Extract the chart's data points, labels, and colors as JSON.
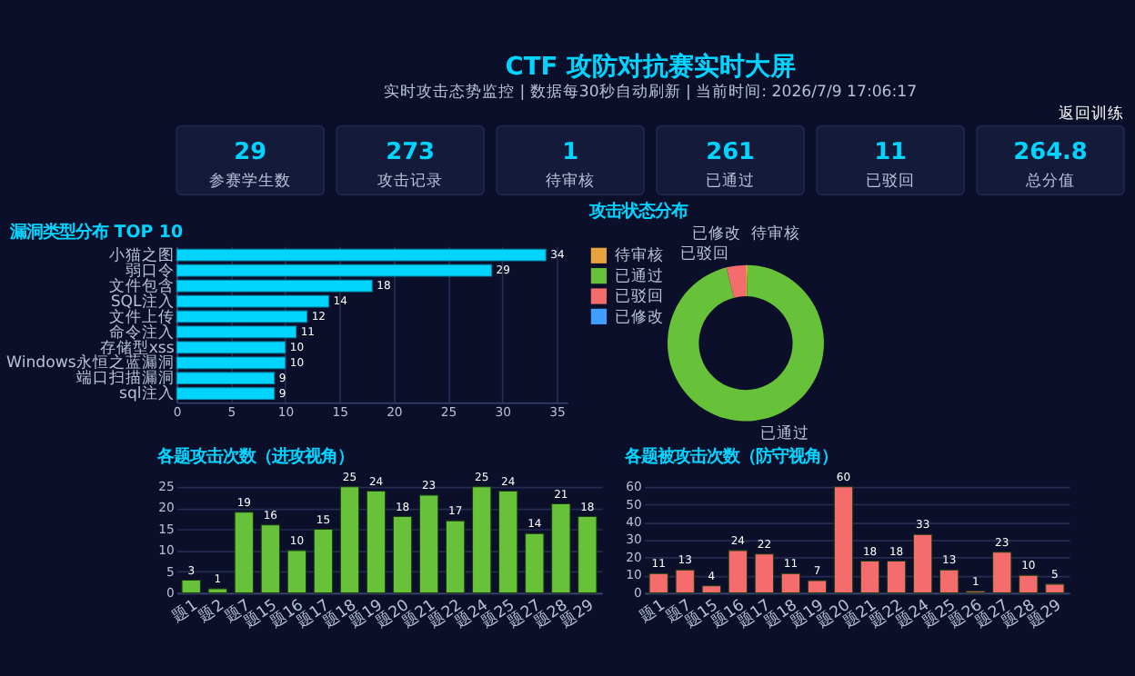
{
  "chart_data": [
    {
      "type": "other",
      "title": "CTF 攻防对抗赛实时大屏",
      "subtitle": "实时攻击态势监控 | 数据每30秒自动刷新 | 当前时间: 2026/7/9 17:06:17",
      "annotations": [
        "返回训练"
      ],
      "categories": [
        "参赛学生数",
        "攻击记录",
        "待审核",
        "已通过",
        "已驳回",
        "总分值"
      ],
      "values": [
        29,
        273,
        1,
        261,
        11,
        264.8
      ],
      "data_labels": true
    },
    {
      "type": "bar",
      "orientation": "horizontal",
      "title": "漏洞类型分布 TOP 10",
      "categories": [
        "小猫之图",
        "弱口令",
        "文件包含",
        "SQL注入",
        "文件上传",
        "命令注入",
        "存储型xss",
        "Windows永恒之蓝漏洞",
        "端口扫描漏洞",
        "sql注入"
      ],
      "values": [
        34,
        29,
        18,
        14,
        12,
        11,
        10,
        10,
        9,
        9
      ],
      "color": "#00d4ff",
      "xlim": [
        0,
        36
      ],
      "xticks": [
        0,
        5,
        10,
        15,
        20,
        25,
        30,
        35
      ],
      "grid": "x",
      "data_labels": true
    },
    {
      "type": "donut",
      "title": "攻击状态分布",
      "categories": [
        "待审核",
        "已通过",
        "已驳回",
        "已修改"
      ],
      "values": [
        0.4,
        95.6,
        4.0,
        0
      ],
      "colors": [
        "#e6a23c",
        "#67c23a",
        "#f56c6c",
        "#409eff"
      ],
      "legend": "top left"
    },
    {
      "type": "bar",
      "title": "各题攻击次数（进攻视角）",
      "categories": [
        "题1",
        "题2",
        "题7",
        "题15",
        "题16",
        "题17",
        "题18",
        "题19",
        "题20",
        "题21",
        "题22",
        "题24",
        "题25",
        "题27",
        "题28",
        "题29"
      ],
      "values": [
        3,
        1,
        19,
        16,
        10,
        15,
        25,
        24,
        18,
        23,
        17,
        25,
        24,
        14,
        21,
        18
      ],
      "color": "#67c23a",
      "ylim": [
        0,
        25
      ],
      "yticks": [
        0,
        5,
        10,
        15,
        20,
        25
      ],
      "grid": "y",
      "data_labels": true
    },
    {
      "type": "bar",
      "title": "各题被攻击次数（防守视角）",
      "categories": [
        "题1",
        "题7",
        "题15",
        "题16",
        "题17",
        "题18",
        "题19",
        "题20",
        "题21",
        "题22",
        "题24",
        "题25",
        "题26",
        "题27",
        "题28",
        "题29"
      ],
      "values": [
        11,
        13,
        4,
        24,
        22,
        11,
        7,
        60,
        18,
        18,
        33,
        13,
        1,
        23,
        10,
        5
      ],
      "color": "#f56c6c",
      "ylim": [
        0,
        60
      ],
      "yticks": [
        0,
        10,
        20,
        30,
        40,
        50,
        60
      ],
      "grid": "y",
      "data_labels": true
    }
  ]
}
